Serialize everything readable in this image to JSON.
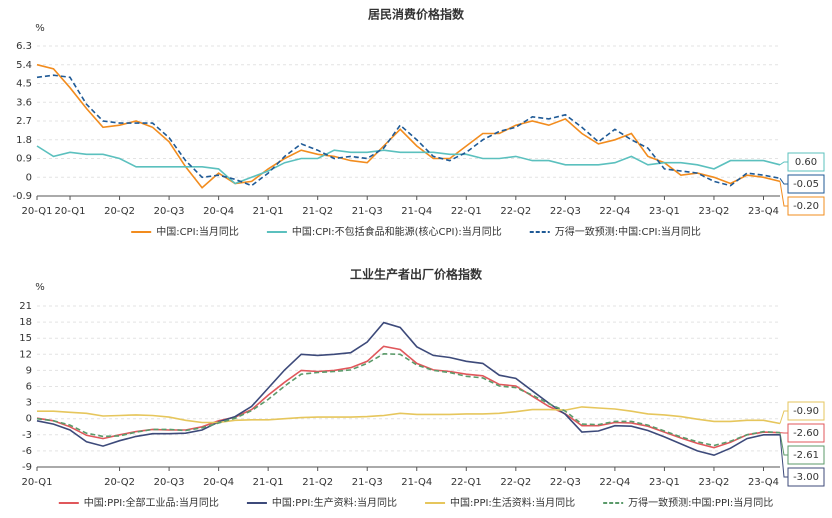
{
  "chart_data": [
    {
      "type": "line",
      "title": "居民消费价格指数",
      "y_label": "%",
      "categories": [
        "20-Q1",
        null,
        "20-Q1",
        null,
        null,
        "20-Q2",
        null,
        null,
        "20-Q3",
        null,
        null,
        "20-Q4",
        null,
        null,
        "21-Q1",
        null,
        null,
        "21-Q2",
        null,
        null,
        "21-Q3",
        null,
        null,
        "21-Q4",
        null,
        null,
        "22-Q1",
        null,
        null,
        "22-Q2",
        null,
        null,
        "22-Q3",
        null,
        null,
        "22-Q4",
        null,
        null,
        "23-Q1",
        null,
        null,
        "23-Q2",
        null,
        null,
        "23-Q4",
        null
      ],
      "ylim": [
        -0.9,
        6.3
      ],
      "yticks": [
        -0.9,
        0.0,
        0.9,
        1.8,
        2.7,
        3.6,
        4.5,
        5.4,
        6.3
      ],
      "grid": true,
      "series": [
        {
          "name": "中国:CPI:当月同比",
          "color": "#f28c1e",
          "dashed": false,
          "values": [
            5.4,
            5.2,
            4.3,
            3.3,
            2.4,
            2.5,
            2.7,
            2.4,
            1.7,
            0.5,
            -0.5,
            0.2,
            -0.3,
            -0.2,
            0.4,
            0.9,
            1.3,
            1.1,
            1.0,
            0.8,
            0.7,
            1.5,
            2.3,
            1.5,
            0.9,
            0.9,
            1.5,
            2.1,
            2.1,
            2.5,
            2.7,
            2.5,
            2.8,
            2.1,
            1.6,
            1.8,
            2.1,
            1.0,
            0.7,
            0.1,
            0.2,
            0.0,
            -0.3,
            0.1,
            0.0,
            -0.2
          ],
          "value_labels": [
            null,
            null,
            null,
            null,
            null,
            null,
            null,
            null,
            null,
            null,
            null,
            null,
            null,
            null,
            null,
            null,
            null,
            null,
            null,
            null,
            null,
            null,
            null,
            null,
            null,
            null,
            null,
            null,
            null,
            null,
            null,
            null,
            null,
            null,
            null,
            null,
            null,
            null,
            null,
            null,
            null,
            null,
            null,
            null,
            null,
            "-0.20"
          ]
        },
        {
          "name": "中国:CPI:不包括食品和能源(核心CPI):当月同比",
          "color": "#5bc0be",
          "dashed": false,
          "values": [
            1.5,
            1.0,
            1.2,
            1.1,
            1.1,
            0.9,
            0.5,
            0.5,
            0.5,
            0.5,
            0.5,
            0.4,
            -0.3,
            0.0,
            0.3,
            0.7,
            0.9,
            0.9,
            1.3,
            1.2,
            1.2,
            1.3,
            1.2,
            1.2,
            1.2,
            1.1,
            1.1,
            0.9,
            0.9,
            1.0,
            0.8,
            0.8,
            0.6,
            0.6,
            0.6,
            0.7,
            1.0,
            0.6,
            0.7,
            0.7,
            0.6,
            0.4,
            0.8,
            0.8,
            0.8,
            0.6
          ],
          "value_labels": [
            null,
            null,
            null,
            null,
            null,
            null,
            null,
            null,
            null,
            null,
            null,
            null,
            null,
            null,
            null,
            null,
            null,
            null,
            null,
            null,
            null,
            null,
            null,
            null,
            null,
            null,
            null,
            null,
            null,
            null,
            null,
            null,
            null,
            null,
            null,
            null,
            null,
            null,
            null,
            null,
            null,
            null,
            null,
            null,
            null,
            "0.60"
          ]
        },
        {
          "name": "万得一致预测:中国:CPI:当月同比",
          "color": "#1f5a96",
          "dashed": true,
          "values": [
            4.8,
            4.9,
            4.8,
            3.5,
            2.7,
            2.6,
            2.6,
            2.6,
            1.9,
            0.8,
            0.0,
            0.1,
            -0.1,
            -0.4,
            0.2,
            1.0,
            1.6,
            1.3,
            0.9,
            1.0,
            0.9,
            1.4,
            2.5,
            1.8,
            1.0,
            0.8,
            1.2,
            1.8,
            2.2,
            2.4,
            2.9,
            2.8,
            3.0,
            2.4,
            1.7,
            2.3,
            1.8,
            1.4,
            0.4,
            0.3,
            0.2,
            -0.2,
            -0.4,
            0.2,
            0.1,
            -0.05
          ],
          "value_labels": [
            null,
            null,
            null,
            null,
            null,
            null,
            null,
            null,
            null,
            null,
            null,
            null,
            null,
            null,
            null,
            null,
            null,
            null,
            null,
            null,
            null,
            null,
            null,
            null,
            null,
            null,
            null,
            null,
            null,
            null,
            null,
            null,
            null,
            null,
            null,
            null,
            null,
            null,
            null,
            null,
            null,
            null,
            null,
            null,
            null,
            "-0.05"
          ]
        }
      ]
    },
    {
      "type": "line",
      "title": "工业生产者出厂价格指数",
      "y_label": "%",
      "categories": [
        "20-Q1",
        null,
        null,
        null,
        null,
        "20-Q2",
        null,
        null,
        "20-Q3",
        null,
        null,
        "20-Q4",
        null,
        null,
        "21-Q1",
        null,
        null,
        "21-Q2",
        null,
        null,
        "21-Q3",
        null,
        null,
        "21-Q4",
        null,
        null,
        "22-Q1",
        null,
        null,
        "22-Q2",
        null,
        null,
        "22-Q3",
        null,
        null,
        "22-Q4",
        null,
        null,
        "23-Q1",
        null,
        null,
        "23-Q2",
        null,
        null,
        "23-Q4",
        null
      ],
      "ylim": [
        -9,
        21
      ],
      "yticks": [
        -9,
        -6,
        -3,
        0,
        3,
        6,
        9,
        12,
        15,
        18,
        21
      ],
      "grid": true,
      "series": [
        {
          "name": "中国:PPI:全部工业品:当月同比",
          "color": "#e0575b",
          "dashed": false,
          "values": [
            0.1,
            -0.4,
            -1.5,
            -3.1,
            -3.7,
            -3.0,
            -2.4,
            -2.0,
            -2.1,
            -2.1,
            -1.5,
            -0.4,
            0.3,
            1.7,
            4.4,
            6.8,
            9.0,
            8.8,
            9.0,
            9.5,
            10.7,
            13.5,
            12.9,
            10.3,
            9.1,
            8.8,
            8.3,
            8.0,
            6.4,
            6.1,
            4.2,
            2.3,
            0.9,
            -1.3,
            -1.3,
            -0.7,
            -0.8,
            -1.4,
            -2.5,
            -3.6,
            -4.6,
            -5.4,
            -4.4,
            -3.0,
            -2.5,
            -2.6
          ],
          "value_labels": [
            null,
            null,
            null,
            null,
            null,
            null,
            null,
            null,
            null,
            null,
            null,
            null,
            null,
            null,
            null,
            null,
            null,
            null,
            null,
            null,
            null,
            null,
            null,
            null,
            null,
            null,
            null,
            null,
            null,
            null,
            null,
            null,
            null,
            null,
            null,
            null,
            null,
            null,
            null,
            null,
            null,
            null,
            null,
            null,
            null,
            "-2.60"
          ]
        },
        {
          "name": "中国:PPI:生产资料:当月同比",
          "color": "#3d4a7a",
          "dashed": false,
          "values": [
            -0.4,
            -1.0,
            -2.1,
            -4.3,
            -5.1,
            -4.1,
            -3.3,
            -2.8,
            -2.8,
            -2.7,
            -2.1,
            -0.6,
            0.4,
            2.3,
            5.7,
            9.1,
            12.0,
            11.8,
            12.0,
            12.3,
            14.3,
            17.9,
            17.0,
            13.4,
            11.8,
            11.4,
            10.7,
            10.3,
            8.1,
            7.5,
            5.2,
            2.9,
            0.8,
            -2.5,
            -2.3,
            -1.3,
            -1.4,
            -2.2,
            -3.4,
            -4.7,
            -6.0,
            -6.8,
            -5.5,
            -3.7,
            -3.0,
            -3.0
          ],
          "value_labels": [
            null,
            null,
            null,
            null,
            null,
            null,
            null,
            null,
            null,
            null,
            null,
            null,
            null,
            null,
            null,
            null,
            null,
            null,
            null,
            null,
            null,
            null,
            null,
            null,
            null,
            null,
            null,
            null,
            null,
            null,
            null,
            null,
            null,
            null,
            null,
            null,
            null,
            null,
            null,
            null,
            null,
            null,
            null,
            null,
            null,
            "-3.00"
          ]
        },
        {
          "name": "中国:PPI:生活资料:当月同比",
          "color": "#e6c65c",
          "dashed": false,
          "values": [
            1.4,
            1.4,
            1.2,
            1.0,
            0.5,
            0.6,
            0.7,
            0.6,
            0.3,
            -0.3,
            -0.7,
            -0.7,
            -0.3,
            -0.2,
            -0.2,
            0.0,
            0.2,
            0.3,
            0.3,
            0.3,
            0.4,
            0.6,
            1.0,
            0.8,
            0.8,
            0.8,
            0.9,
            0.9,
            1.0,
            1.3,
            1.7,
            1.7,
            1.6,
            2.2,
            2.0,
            1.8,
            1.4,
            0.9,
            0.7,
            0.4,
            -0.1,
            -0.5,
            -0.5,
            -0.3,
            -0.3,
            -0.9
          ],
          "value_labels": [
            null,
            null,
            null,
            null,
            null,
            null,
            null,
            null,
            null,
            null,
            null,
            null,
            null,
            null,
            null,
            null,
            null,
            null,
            null,
            null,
            null,
            null,
            null,
            null,
            null,
            null,
            null,
            null,
            null,
            null,
            null,
            null,
            null,
            null,
            null,
            null,
            null,
            null,
            null,
            null,
            null,
            null,
            null,
            null,
            null,
            "-0.90"
          ]
        },
        {
          "name": "万得一致预测:中国:PPI:当月同比",
          "color": "#5b9a6a",
          "dashed": true,
          "values": [
            0.0,
            -0.4,
            -1.2,
            -2.7,
            -3.3,
            -3.2,
            -2.5,
            -2.0,
            -2.0,
            -2.2,
            -1.7,
            -0.8,
            0.1,
            1.5,
            3.6,
            6.1,
            8.3,
            8.6,
            8.8,
            9.1,
            10.3,
            12.1,
            12.0,
            10.0,
            9.0,
            8.6,
            7.9,
            7.6,
            6.1,
            5.8,
            4.4,
            2.8,
            1.4,
            -1.0,
            -1.1,
            -0.5,
            -0.5,
            -1.2,
            -2.3,
            -3.4,
            -4.3,
            -5.0,
            -4.2,
            -3.0,
            -2.4,
            -2.61
          ],
          "value_labels": [
            null,
            null,
            null,
            null,
            null,
            null,
            null,
            null,
            null,
            null,
            null,
            null,
            null,
            null,
            null,
            null,
            null,
            null,
            null,
            null,
            null,
            null,
            null,
            null,
            null,
            null,
            null,
            null,
            null,
            null,
            null,
            null,
            null,
            null,
            null,
            null,
            null,
            null,
            null,
            null,
            null,
            null,
            null,
            null,
            null,
            "-2.61"
          ]
        }
      ]
    }
  ]
}
